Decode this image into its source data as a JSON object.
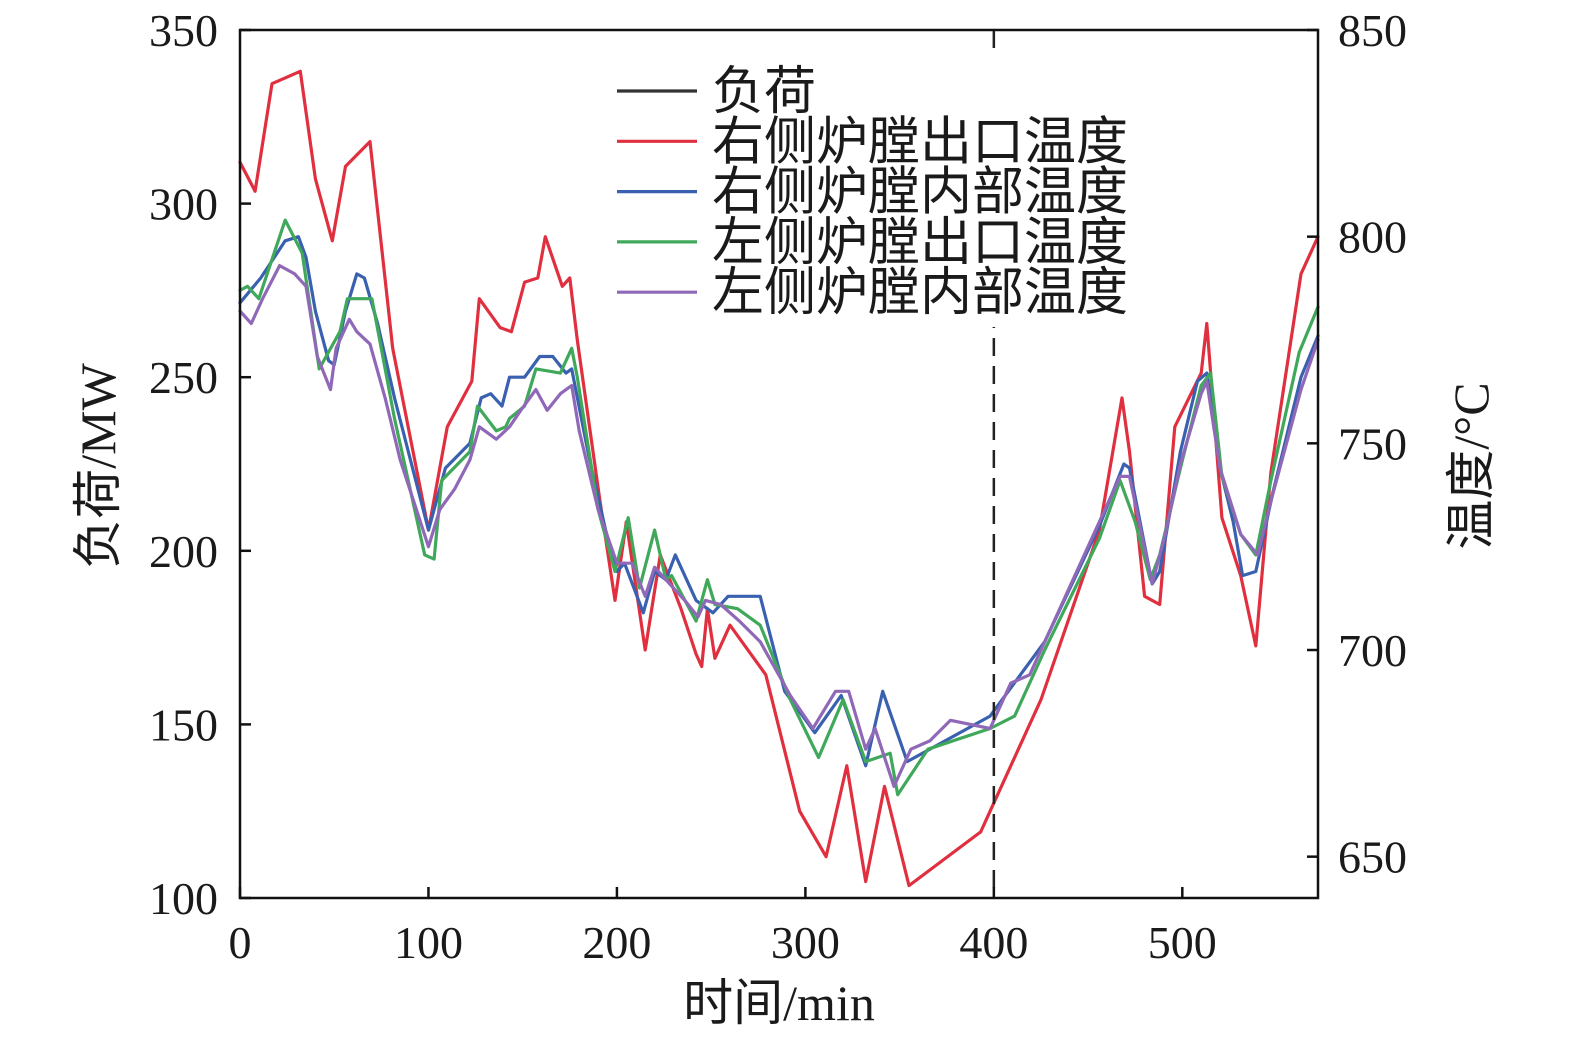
{
  "chart_data": {
    "type": "line",
    "xlabel": "时间/min",
    "ylabel": "负荷/MW",
    "y2label": "温度/°C",
    "xlim": [
      0,
      572
    ],
    "ylim": [
      100,
      350
    ],
    "y2lim": [
      640,
      850
    ],
    "xticks": [
      0,
      100,
      200,
      300,
      400,
      500
    ],
    "yticks": [
      100,
      150,
      200,
      250,
      300,
      350
    ],
    "y2ticks": [
      650,
      700,
      750,
      800,
      850
    ],
    "grid": false,
    "legend_position": "upper-center",
    "reference_line_x": 400,
    "series": [
      {
        "name": "负荷",
        "color": "#333333",
        "axis": "left",
        "x": [],
        "y": []
      },
      {
        "name": "右侧炉膛出口温度",
        "color": "#e0303f",
        "axis": "right",
        "x": [
          0,
          8,
          17,
          32,
          40,
          49,
          56,
          69,
          81,
          100,
          110,
          123,
          127,
          138,
          144,
          151,
          158,
          162,
          171,
          175,
          179,
          191,
          199,
          205,
          215,
          223,
          234,
          242,
          245,
          248,
          252,
          260,
          279,
          297,
          311,
          322,
          332,
          342,
          355,
          393,
          398,
          425,
          456,
          468,
          472,
          480,
          488,
          496,
          510,
          513,
          521,
          531,
          539,
          547,
          563,
          572
        ],
        "y": [
          818,
          811,
          837,
          840,
          814,
          799,
          817,
          823,
          773,
          729,
          754,
          765,
          785,
          778,
          777,
          789,
          790,
          800,
          788,
          790,
          775,
          736,
          712,
          731,
          700,
          723,
          710,
          699,
          696,
          710,
          698,
          706,
          694,
          661,
          650,
          672,
          644,
          667,
          643,
          656,
          661,
          688,
          729,
          761,
          748,
          713,
          711,
          754,
          767,
          779,
          732,
          718,
          701,
          743,
          791,
          800
        ]
      },
      {
        "name": "右侧炉膛内部温度",
        "color": "#3a60b0",
        "axis": "right",
        "x": [
          0,
          11,
          24,
          31,
          35,
          40,
          47,
          50,
          56,
          62,
          66,
          73,
          82,
          100,
          109,
          122,
          128,
          133,
          139,
          143,
          151,
          159,
          166,
          173,
          176,
          185,
          194,
          200,
          204,
          214,
          220,
          226,
          231,
          242,
          251,
          259,
          276,
          289,
          305,
          319,
          332,
          341,
          354,
          398,
          427,
          456,
          469,
          472,
          484,
          488,
          499,
          508,
          513,
          520,
          527,
          532,
          539,
          548,
          563,
          572
        ],
        "y": [
          784,
          790,
          799,
          800,
          795,
          782,
          770,
          769,
          782,
          791,
          790,
          779,
          761,
          729,
          744,
          750,
          761,
          762,
          759,
          766,
          766,
          771,
          771,
          767,
          768,
          747,
          729,
          719,
          721,
          709,
          719,
          717,
          723,
          712,
          709,
          713,
          713,
          690,
          680,
          689,
          672,
          690,
          673,
          684,
          702,
          730,
          745,
          744,
          716,
          719,
          748,
          765,
          767,
          744,
          731,
          718,
          719,
          738,
          766,
          776
        ]
      },
      {
        "name": "左侧炉膛出口温度",
        "color": "#40a85a",
        "axis": "right",
        "x": [
          0,
          4,
          10,
          24,
          33,
          42,
          53,
          57,
          70,
          82,
          98,
          103,
          107,
          122,
          126,
          136,
          141,
          143,
          151,
          157,
          170,
          176,
          179,
          190,
          199,
          206,
          212,
          220,
          226,
          229,
          242,
          248,
          252,
          264,
          276,
          292,
          307,
          320,
          332,
          345,
          349,
          365,
          398,
          411,
          427,
          456,
          467,
          475,
          483,
          488,
          499,
          510,
          515,
          521,
          531,
          539,
          547,
          562,
          572
        ],
        "y": [
          787,
          788,
          785,
          804,
          796,
          768,
          777,
          785,
          785,
          756,
          723,
          722,
          741,
          748,
          759,
          753,
          754,
          756,
          759,
          768,
          767,
          773,
          766,
          734,
          719,
          732,
          715,
          729,
          717,
          718,
          707,
          717,
          711,
          710,
          706,
          688,
          674,
          688,
          673,
          675,
          665,
          676,
          681,
          684,
          700,
          727,
          741,
          731,
          717,
          723,
          744,
          764,
          767,
          742,
          728,
          723,
          741,
          772,
          783
        ]
      },
      {
        "name": "左侧炉膛内部温度",
        "color": "#9068b8",
        "axis": "right",
        "x": [
          0,
          6,
          12,
          21,
          29,
          35,
          41,
          48,
          51,
          58,
          62,
          69,
          77,
          85,
          100,
          106,
          114,
          122,
          127,
          136,
          143,
          149,
          157,
          163,
          170,
          176,
          180,
          190,
          200,
          208,
          215,
          220,
          228,
          236,
          243,
          247,
          255,
          265,
          276,
          292,
          304,
          316,
          323,
          332,
          337,
          347,
          356,
          366,
          377,
          398,
          409,
          419,
          435,
          454,
          467,
          472,
          484,
          491,
          499,
          510,
          513,
          520,
          531,
          540,
          547,
          563,
          572
        ],
        "y": [
          782,
          779,
          785,
          793,
          791,
          788,
          771,
          763,
          773,
          780,
          777,
          774,
          761,
          746,
          725,
          734,
          739,
          746,
          754,
          751,
          754,
          758,
          763,
          758,
          762,
          764,
          753,
          734,
          721,
          721,
          713,
          720,
          716,
          712,
          708,
          712,
          711,
          707,
          702,
          689,
          681,
          690,
          690,
          676,
          681,
          667,
          676,
          678,
          683,
          681,
          692,
          694,
          710,
          729,
          742,
          742,
          716,
          728,
          745,
          762,
          765,
          744,
          728,
          723,
          736,
          763,
          775
        ]
      }
    ]
  }
}
